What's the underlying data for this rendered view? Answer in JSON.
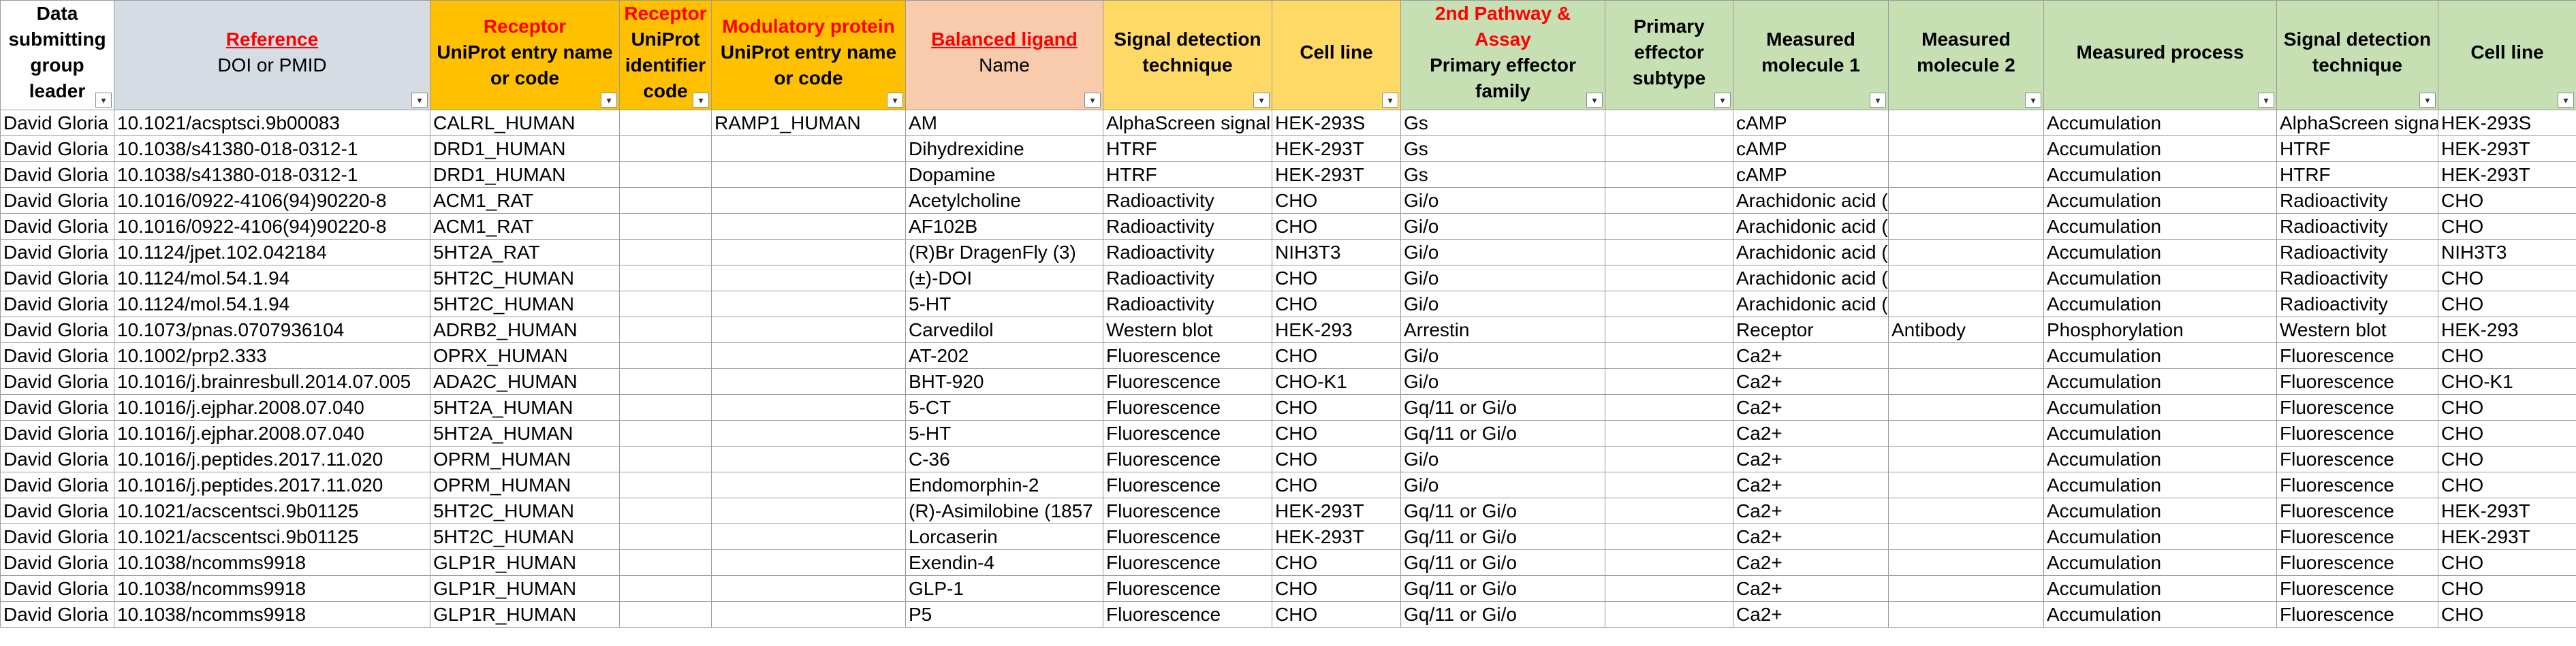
{
  "columns": [
    {
      "key": "leader",
      "bg": "#ffffff",
      "lines": [
        {
          "text": "Data submitting group leader",
          "style": "bold"
        }
      ]
    },
    {
      "key": "ref",
      "bg": "#d6dce4",
      "lines": [
        {
          "text": "Reference",
          "style": "red-underline"
        },
        {
          "text": "DOI or PMID",
          "style": "normal"
        }
      ]
    },
    {
      "key": "rec",
      "bg": "#ffc000",
      "lines": [
        {
          "text": "Receptor",
          "style": "red"
        },
        {
          "text": "UniProt entry name or code",
          "style": "bold"
        }
      ]
    },
    {
      "key": "recid",
      "bg": "#ffc000",
      "lines": [
        {
          "text": "Receptor",
          "style": "red"
        },
        {
          "text": "UniProt identifier code",
          "style": "bold"
        }
      ]
    },
    {
      "key": "mod",
      "bg": "#ffc000",
      "lines": [
        {
          "text": "Modulatory protein",
          "style": "red"
        },
        {
          "text": "UniProt entry name or code",
          "style": "bold"
        }
      ]
    },
    {
      "key": "lig",
      "bg": "#f8cbad",
      "lines": [
        {
          "text": "Balanced ligand",
          "style": "red-underline"
        },
        {
          "text": "Name",
          "style": "normal"
        }
      ]
    },
    {
      "key": "sdt1",
      "bg": "#ffd966",
      "lines": [
        {
          "text": "Signal detection technique",
          "style": "bold"
        }
      ]
    },
    {
      "key": "cl1",
      "bg": "#ffd966",
      "lines": [
        {
          "text": "Cell line",
          "style": "bold"
        }
      ]
    },
    {
      "key": "pef",
      "bg": "#c6e0b4",
      "lines": [
        {
          "text": "2nd Pathway & Assay",
          "style": "red"
        },
        {
          "text": "Primary effector family",
          "style": "bold"
        }
      ]
    },
    {
      "key": "pes",
      "bg": "#c6e0b4",
      "lines": [
        {
          "text": "Primary effector subtype",
          "style": "bold"
        }
      ]
    },
    {
      "key": "mm1",
      "bg": "#c6e0b4",
      "lines": [
        {
          "text": "Measured molecule 1",
          "style": "bold"
        }
      ]
    },
    {
      "key": "mm2",
      "bg": "#c6e0b4",
      "lines": [
        {
          "text": "Measured molecule 2",
          "style": "bold"
        }
      ]
    },
    {
      "key": "mp",
      "bg": "#c6e0b4",
      "lines": [
        {
          "text": "Measured process",
          "style": "bold"
        }
      ]
    },
    {
      "key": "sdt2",
      "bg": "#c6e0b4",
      "lines": [
        {
          "text": "Signal detection technique",
          "style": "bold"
        }
      ]
    },
    {
      "key": "cl2",
      "bg": "#c6e0b4",
      "lines": [
        {
          "text": "Cell line",
          "style": "bold"
        }
      ]
    }
  ],
  "rows": [
    [
      "David Gloria",
      "10.1021/acsptsci.9b00083",
      "CALRL_HUMAN",
      "",
      "RAMP1_HUMAN",
      "AM",
      " AlphaScreen signal",
      "HEK-293S",
      "Gs",
      "",
      "cAMP",
      "",
      "Accumulation",
      " AlphaScreen signal",
      "HEK-293S"
    ],
    [
      "David Gloria",
      "10.1038/s41380-018-0312-1",
      "DRD1_HUMAN",
      "",
      "",
      "Dihydrexidine",
      " HTRF",
      "HEK-293T",
      "Gs",
      "",
      "cAMP",
      "",
      "Accumulation",
      " HTRF",
      "HEK-293T"
    ],
    [
      "David Gloria",
      "10.1038/s41380-018-0312-1",
      "DRD1_HUMAN",
      "",
      "",
      "Dopamine",
      " HTRF",
      "HEK-293T",
      "Gs",
      "",
      "cAMP",
      "",
      "Accumulation",
      " HTRF",
      "HEK-293T"
    ],
    [
      "David Gloria",
      "10.1016/0922-4106(94)90220-8",
      "ACM1_RAT",
      "",
      "",
      "Acetylcholine",
      "Radioactivity",
      "CHO",
      "Gi/o",
      "",
      "Arachidonic acid (AA)",
      "",
      "Accumulation",
      "Radioactivity",
      "CHO"
    ],
    [
      "David Gloria",
      "10.1016/0922-4106(94)90220-8",
      "ACM1_RAT",
      "",
      "",
      "AF102B",
      "Radioactivity",
      "CHO",
      "Gi/o",
      "",
      "Arachidonic acid (AA)",
      "",
      "Accumulation",
      "Radioactivity",
      "CHO"
    ],
    [
      "David Gloria",
      "10.1124/jpet.102.042184",
      "5HT2A_RAT",
      "",
      "",
      "(R)Br DragenFly (3)",
      "Radioactivity",
      "NIH3T3",
      "Gi/o",
      "",
      "Arachidonic acid (AA)",
      "",
      "Accumulation",
      "Radioactivity",
      "NIH3T3"
    ],
    [
      "David Gloria",
      "10.1124/mol.54.1.94",
      "5HT2C_HUMAN",
      "",
      "",
      "(±)-DOI",
      "Radioactivity",
      "CHO",
      "Gi/o",
      "",
      "Arachidonic acid (AA)",
      "",
      "Accumulation",
      "Radioactivity",
      "CHO"
    ],
    [
      "David Gloria",
      "10.1124/mol.54.1.94",
      "5HT2C_HUMAN",
      "",
      "",
      "5-HT",
      "Radioactivity",
      "CHO",
      "Gi/o",
      "",
      "Arachidonic acid (AA)",
      "",
      "Accumulation",
      "Radioactivity",
      "CHO"
    ],
    [
      "David Gloria",
      "10.1073/pnas.0707936104",
      "ADRB2_HUMAN",
      "",
      "",
      "Carvedilol",
      "Western blot",
      "HEK-293",
      "Arrestin",
      "",
      "Receptor",
      "Antibody",
      "Phosphorylation",
      "Western blot",
      "HEK-293"
    ],
    [
      "David Gloria",
      "10.1002/prp2.333",
      "OPRX_HUMAN",
      "",
      "",
      "AT-202",
      "Fluorescence",
      "CHO",
      "Gi/o",
      "",
      "Ca2+",
      "",
      "Accumulation",
      "Fluorescence",
      "CHO"
    ],
    [
      "David Gloria",
      "10.1016/j.brainresbull.2014.07.005",
      "ADA2C_HUMAN",
      "",
      "",
      "BHT-920",
      "Fluorescence",
      "CHO-K1",
      "Gi/o",
      "",
      "Ca2+",
      "",
      "Accumulation",
      "Fluorescence",
      "CHO-K1"
    ],
    [
      "David Gloria",
      "10.1016/j.ejphar.2008.07.040",
      "5HT2A_HUMAN",
      "",
      "",
      "5-CT",
      "Fluorescence",
      "CHO",
      "Gq/11 or Gi/o",
      "",
      "Ca2+",
      "",
      "Accumulation",
      "Fluorescence",
      "CHO"
    ],
    [
      "David Gloria",
      "10.1016/j.ejphar.2008.07.040",
      "5HT2A_HUMAN",
      "",
      "",
      "5-HT",
      "Fluorescence",
      "CHO",
      "Gq/11 or Gi/o",
      "",
      "Ca2+",
      "",
      "Accumulation",
      "Fluorescence",
      "CHO"
    ],
    [
      "David Gloria",
      "10.1016/j.peptides.2017.11.020",
      "OPRM_HUMAN",
      "",
      "",
      "C-36",
      "Fluorescence",
      "CHO",
      "Gi/o",
      "",
      "Ca2+",
      "",
      "Accumulation",
      "Fluorescence",
      "CHO"
    ],
    [
      "David Gloria",
      "10.1016/j.peptides.2017.11.020",
      "OPRM_HUMAN",
      "",
      "",
      "Endomorphin-2",
      "Fluorescence",
      "CHO",
      "Gi/o",
      "",
      "Ca2+",
      "",
      "Accumulation",
      "Fluorescence",
      "CHO"
    ],
    [
      "David Gloria",
      "10.1021/acscentsci.9b01125",
      "5HT2C_HUMAN",
      "",
      "",
      "(R)-Asimilobine (1857",
      "Fluorescence",
      "HEK-293T",
      "Gq/11 or Gi/o",
      "",
      "Ca2+",
      "",
      "Accumulation",
      "Fluorescence",
      "HEK-293T"
    ],
    [
      "David Gloria",
      "10.1021/acscentsci.9b01125",
      "5HT2C_HUMAN",
      "",
      "",
      "Lorcaserin",
      "Fluorescence",
      "HEK-293T",
      "Gq/11 or Gi/o",
      "",
      "Ca2+",
      "",
      "Accumulation",
      "Fluorescence",
      "HEK-293T"
    ],
    [
      "David Gloria",
      "10.1038/ncomms9918",
      "GLP1R_HUMAN",
      "",
      "",
      "Exendin-4",
      "Fluorescence",
      "CHO",
      "Gq/11 or Gi/o",
      "",
      "Ca2+",
      "",
      "Accumulation",
      "Fluorescence",
      "CHO"
    ],
    [
      "David Gloria",
      "10.1038/ncomms9918",
      "GLP1R_HUMAN",
      "",
      "",
      "GLP-1",
      "Fluorescence",
      "CHO",
      "Gq/11 or Gi/o",
      "",
      "Ca2+",
      "",
      "Accumulation",
      "Fluorescence",
      "CHO"
    ],
    [
      "David Gloria",
      "10.1038/ncomms9918",
      "GLP1R_HUMAN",
      "",
      "",
      "P5",
      "Fluorescence",
      "CHO",
      "Gq/11 or Gi/o",
      "",
      "Ca2+",
      "",
      "Accumulation",
      "Fluorescence",
      "CHO"
    ]
  ]
}
